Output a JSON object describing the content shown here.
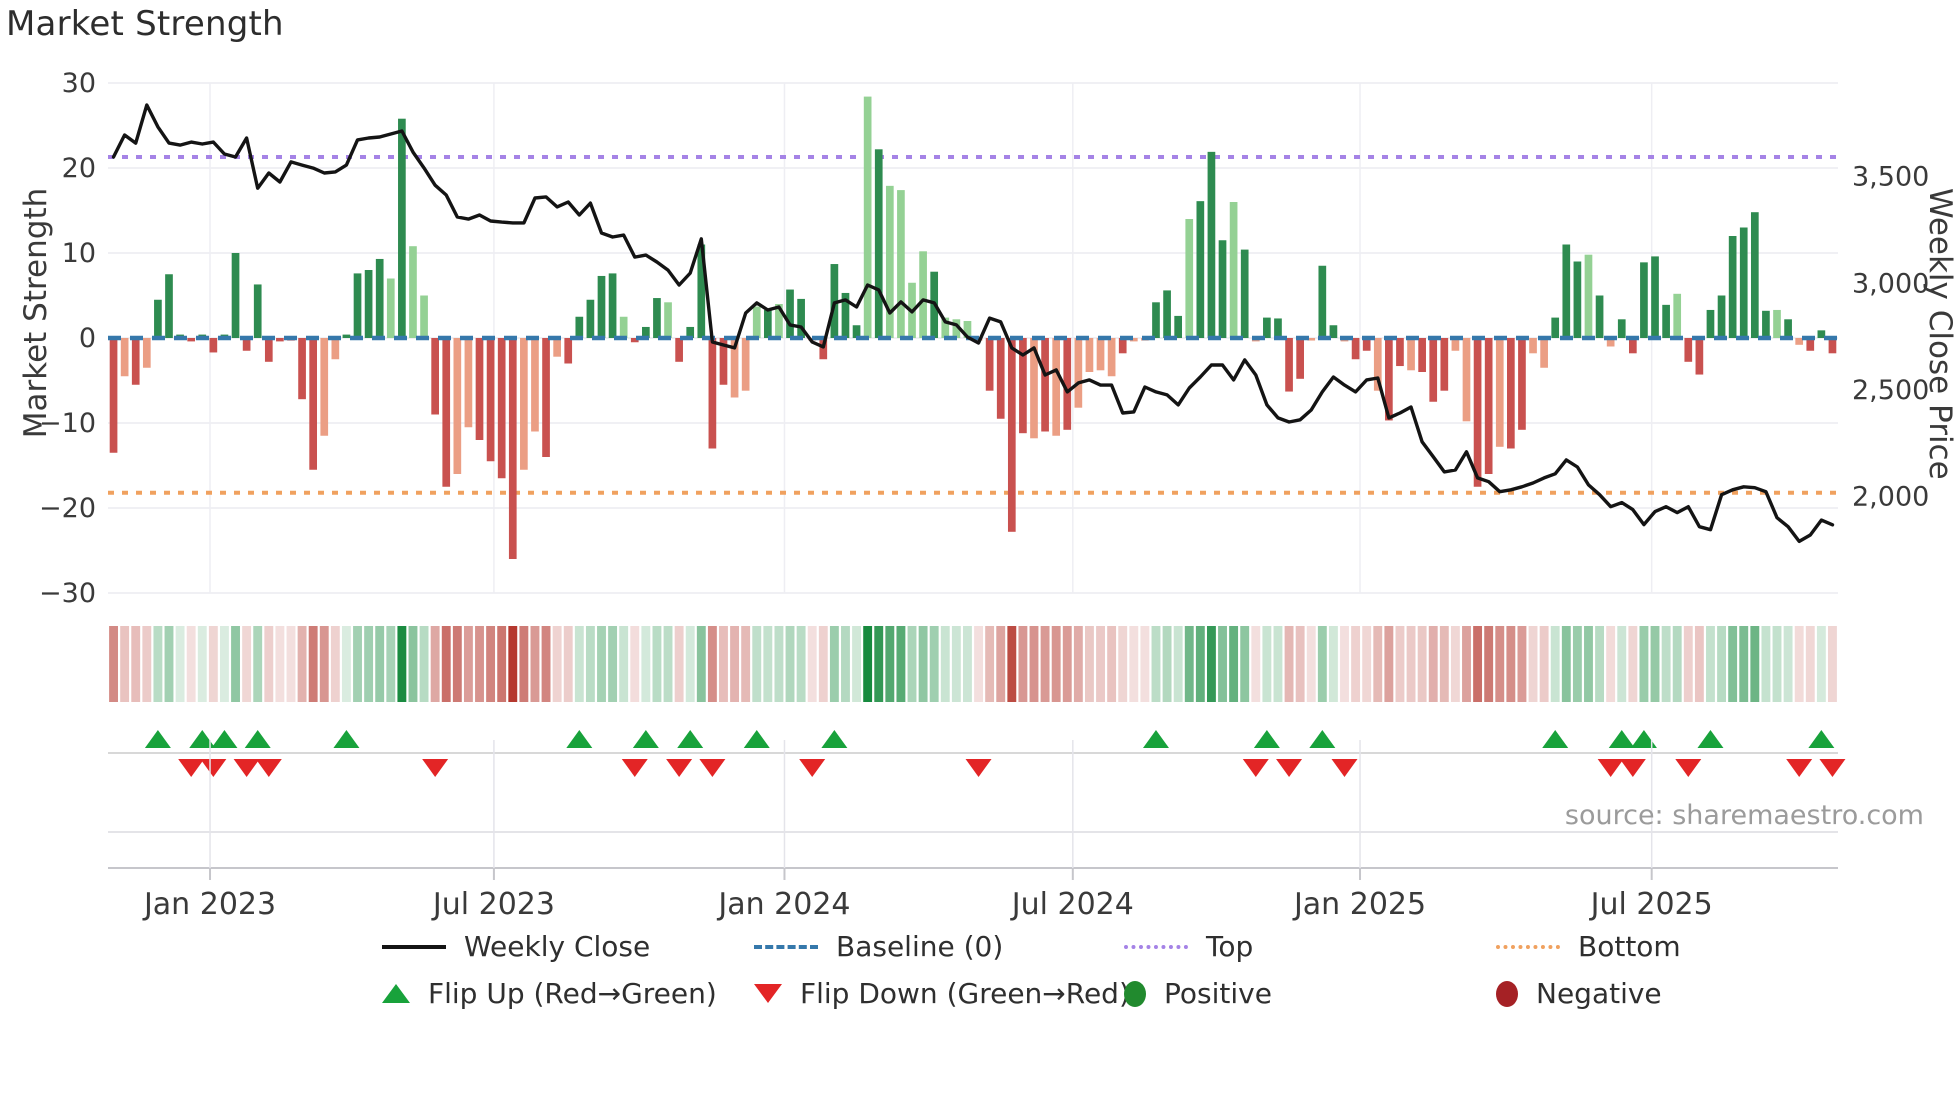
{
  "title": "Market Strength",
  "source": "source: sharemaestro.com",
  "axes": {
    "left_title": "Market Strength",
    "right_title": "Weekly Close Price",
    "left_ticks": [
      {
        "v": 30,
        "label": "30"
      },
      {
        "v": 20,
        "label": "20"
      },
      {
        "v": 10,
        "label": "10"
      },
      {
        "v": 0,
        "label": "0"
      },
      {
        "v": -10,
        "label": "−10"
      },
      {
        "v": -20,
        "label": "−20"
      },
      {
        "v": -30,
        "label": "−30"
      }
    ],
    "right_ticks": [
      {
        "v": 3500,
        "label": "3,500"
      },
      {
        "v": 3000,
        "label": "3,000"
      },
      {
        "v": 2500,
        "label": "2,500"
      },
      {
        "v": 2000,
        "label": "2,000"
      }
    ],
    "x_ticks": [
      {
        "week": 9.2,
        "label": "Jan 2023"
      },
      {
        "week": 34.8,
        "label": "Jul 2023"
      },
      {
        "week": 61.0,
        "label": "Jan 2024"
      },
      {
        "week": 87.0,
        "label": "Jul 2024"
      },
      {
        "week": 112.9,
        "label": "Jan 2025"
      },
      {
        "week": 139.2,
        "label": "Jul 2025"
      }
    ]
  },
  "legend": [
    {
      "swatch": "line",
      "label": "Weekly Close"
    },
    {
      "swatch": "dash",
      "label": "Baseline (0)"
    },
    {
      "swatch": "dot-purple",
      "label": "Top"
    },
    {
      "swatch": "dot-orange",
      "label": "Bottom"
    },
    {
      "swatch": "tri-up",
      "label": "Flip Up (Red→Green)"
    },
    {
      "swatch": "tri-down",
      "label": "Flip Down (Green→Red)"
    },
    {
      "swatch": "dot-green",
      "label": "Positive"
    },
    {
      "swatch": "dot-red",
      "label": "Negative"
    }
  ],
  "colors": {
    "bar_dark_green": "#2e8b50",
    "bar_light_green": "#94d194",
    "bar_dark_red": "#c9514f",
    "bar_light_red": "#eb9e84",
    "price_line": "#141414",
    "baseline": "#3578ab",
    "top_line": "#a583e6",
    "bottom_line": "#f0a15f",
    "flip_up": "#18a23b",
    "flip_down": "#e32526",
    "positive_dot": "#218a2e",
    "negative_dot": "#a52125",
    "heat_green": "#178a3e",
    "heat_red": "#b5382f",
    "grid": "#ebebf0",
    "tick_text": "#3a3a3a"
  },
  "chart_data": {
    "type": "bar",
    "subtype": "bar+line+heatmap+flip-markers",
    "title": "Market Strength",
    "n_weeks": 156,
    "left_axis_label": "Market Strength",
    "right_axis_label": "Weekly Close Price",
    "left_range": [
      -30,
      30
    ],
    "right_range": [
      1750,
      3900
    ],
    "baseline": 0,
    "top_level": 21.3,
    "bottom_level": -18.2,
    "strength_values": [
      -13.5,
      -4.5,
      -5.5,
      -3.5,
      4.5,
      7.5,
      0.4,
      -0.4,
      0.4,
      -1.7,
      0.4,
      10,
      -1.5,
      6.3,
      -2.8,
      -0.4,
      -0.3,
      -7.2,
      -15.5,
      -11.5,
      -2.5,
      0.4,
      7.6,
      8,
      9.3,
      7,
      25.8,
      10.8,
      5,
      -9,
      -17.5,
      -16,
      -10.5,
      -12,
      -14.5,
      -16.5,
      -26,
      -15.5,
      -11,
      -14,
      -2.2,
      -3,
      2.5,
      4.5,
      7.3,
      7.6,
      2.5,
      -0.5,
      1.3,
      4.7,
      4.2,
      -2.8,
      1.3,
      11,
      -13,
      -5.5,
      -7,
      -6.2,
      3.7,
      3.3,
      4,
      5.7,
      4.6,
      -0.3,
      -2.5,
      8.7,
      5.3,
      1.5,
      28.4,
      22.2,
      17.9,
      17.4,
      6.5,
      10.2,
      7.8,
      2.4,
      2.2,
      2,
      -0.3,
      -6.2,
      -9.5,
      -22.8,
      -11.2,
      -11.8,
      -11,
      -11.5,
      -10.8,
      -8.2,
      -4,
      -3.8,
      -4.5,
      -1.8,
      -0.4,
      -0.3,
      4.2,
      5.6,
      2.6,
      14,
      16.1,
      21.9,
      11.5,
      16,
      10.4,
      -0.4,
      2.4,
      2.3,
      -6.3,
      -4.8,
      -0.3,
      8.5,
      1.5,
      -0.4,
      -2.5,
      -1.5,
      -6.2,
      -9.7,
      -3.3,
      -3.8,
      -4,
      -7.5,
      -6.2,
      -1.5,
      -9.8,
      -17.5,
      -16,
      -12.8,
      -13,
      -10.8,
      -1.8,
      -3.5,
      2.4,
      11,
      9,
      9.8,
      5,
      -1,
      2.2,
      -1.8,
      8.9,
      9.6,
      3.9,
      5.2,
      -2.8,
      -4.3,
      3.3,
      5,
      12,
      13,
      14.8,
      3.2,
      3.3,
      2.2,
      -0.8,
      -1.5,
      0.9,
      -1.8
    ],
    "strength_shades": "dldldddddddddddddddllddddldllddllddddlldldddddldddldddddllldlddlddddldlllldllllddddldldlllldlldddldddldlddddlddlddlddldddllddlddlldddldldddddlddddddddldldddd",
    "weekly_close_values": [
      3592,
      3695,
      3657,
      3836,
      3733,
      3657,
      3648,
      3662,
      3653,
      3662,
      3606,
      3592,
      3681,
      3446,
      3517,
      3475,
      3569,
      3554,
      3540,
      3517,
      3522,
      3554,
      3672,
      3681,
      3686,
      3700,
      3714,
      3615,
      3540,
      3460,
      3414,
      3311,
      3301,
      3320,
      3292,
      3287,
      3283,
      3283,
      3400,
      3405,
      3358,
      3381,
      3320,
      3376,
      3236,
      3217,
      3226,
      3123,
      3132,
      3100,
      3062,
      2992,
      3048,
      3208,
      2725,
      2711,
      2697,
      2861,
      2908,
      2875,
      2889,
      2805,
      2795,
      2725,
      2702,
      2908,
      2922,
      2889,
      2992,
      2969,
      2861,
      2913,
      2866,
      2922,
      2908,
      2819,
      2805,
      2748,
      2720,
      2837,
      2819,
      2697,
      2664,
      2697,
      2570,
      2594,
      2491,
      2533,
      2547,
      2523,
      2523,
      2392,
      2397,
      2514,
      2491,
      2477,
      2430,
      2509,
      2561,
      2617,
      2617,
      2547,
      2641,
      2570,
      2430,
      2369,
      2350,
      2360,
      2406,
      2491,
      2561,
      2523,
      2491,
      2547,
      2556,
      2369,
      2392,
      2420,
      2257,
      2187,
      2116,
      2125,
      2210,
      2088,
      2070,
      2023,
      2032,
      2046,
      2064,
      2088,
      2107,
      2172,
      2139,
      2055,
      2009,
      1953,
      1972,
      1939,
      1869,
      1930,
      1953,
      1925,
      1953,
      1859,
      1845,
      2009,
      2032,
      2046,
      2042,
      2023,
      1901,
      1859,
      1790,
      1820,
      1890,
      1868
    ],
    "flip_up_weeks": [
      4,
      8,
      10,
      13,
      21,
      42,
      48,
      52,
      58,
      65,
      94,
      104,
      109,
      130,
      136,
      138,
      144,
      154
    ],
    "flip_down_weeks": [
      7,
      9,
      12,
      14,
      29,
      47,
      51,
      54,
      63,
      78,
      103,
      106,
      111,
      135,
      137,
      142,
      152,
      155
    ],
    "heatmap": "per-week cells colored by sign of strength, opacity proportional to |strength|",
    "grid": true,
    "legend_position": "bottom"
  }
}
